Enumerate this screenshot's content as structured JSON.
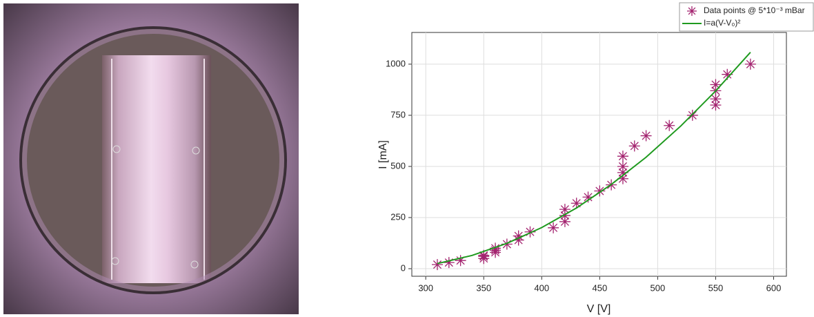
{
  "chart_data": {
    "type": "scatter",
    "x_label": "V [V]",
    "y_label": "I [mA]",
    "xlim": [
      288,
      611
    ],
    "ylim": [
      -37,
      1155
    ],
    "xticks": [
      300,
      350,
      400,
      450,
      500,
      550,
      600
    ],
    "yticks": [
      0,
      250,
      500,
      750,
      1000
    ],
    "grid": true,
    "legend": "top-right",
    "series": [
      {
        "name": "Data points @ 5*10⁻³ mBar",
        "color": "#a3236f",
        "marker": "star",
        "x": [
          310,
          320,
          330,
          350,
          350,
          350,
          360,
          360,
          360,
          370,
          380,
          380,
          390,
          410,
          420,
          420,
          420,
          430,
          440,
          450,
          460,
          470,
          470,
          470,
          470,
          480,
          490,
          510,
          530,
          550,
          550,
          550,
          550,
          560,
          580
        ],
        "values": [
          20,
          30,
          40,
          50,
          60,
          65,
          80,
          90,
          100,
          120,
          140,
          160,
          180,
          200,
          230,
          260,
          290,
          320,
          350,
          380,
          410,
          440,
          470,
          500,
          550,
          600,
          650,
          700,
          750,
          800,
          830,
          870,
          900,
          950,
          1000
        ]
      },
      {
        "name": "I=a(V-V₀)²",
        "color": "#1f9a1f",
        "marker": "line",
        "x": [
          310,
          340,
          370,
          400,
          430,
          460,
          490,
          520,
          550,
          580
        ],
        "values": [
          25,
          65,
          124,
          201,
          297,
          412,
          545,
          698,
          869,
          1058
        ]
      }
    ]
  }
}
